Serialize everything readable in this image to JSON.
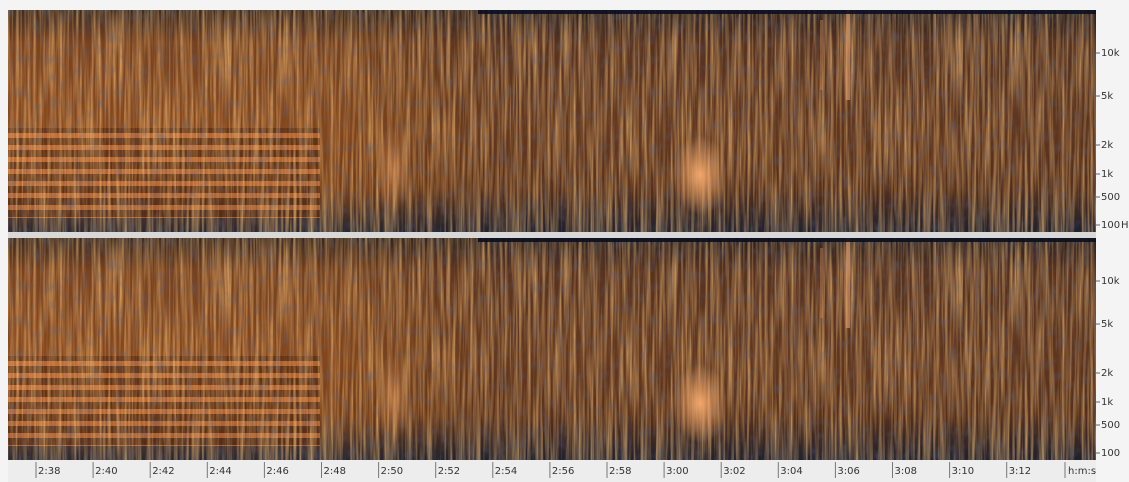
{
  "channels": [
    {
      "freq_labels": [
        "10k",
        "5k",
        "2k",
        "1k",
        "500",
        "100"
      ]
    },
    {
      "freq_labels": [
        "10k",
        "5k",
        "2k",
        "1k",
        "500",
        "100"
      ]
    }
  ],
  "freq_unit": "H",
  "time_labels": [
    "2:38",
    "2:40",
    "2:42",
    "2:44",
    "2:46",
    "2:48",
    "2:50",
    "2:52",
    "2:54",
    "2:56",
    "2:58",
    "3:00",
    "3:02",
    "3:04",
    "3:06",
    "3:08",
    "3:10",
    "3:12"
  ],
  "time_unit": "h:m:s"
}
